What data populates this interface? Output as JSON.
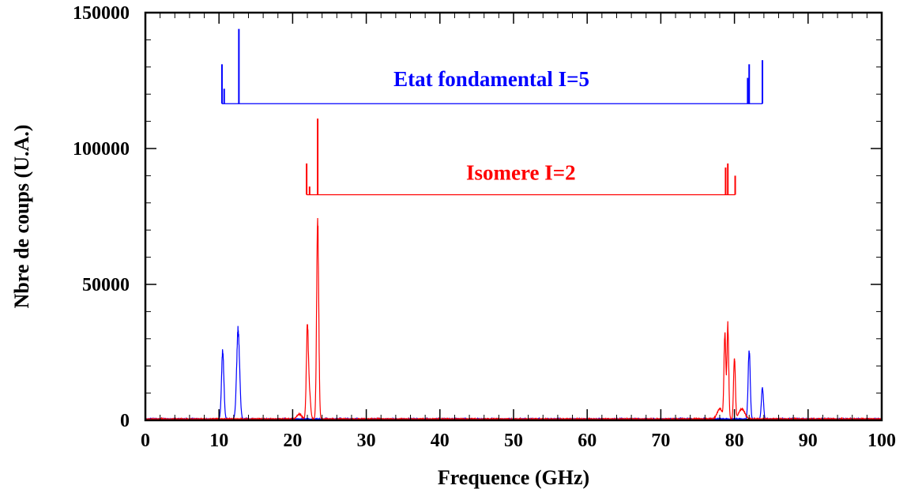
{
  "chart_data": {
    "type": "line",
    "title": "",
    "xlabel": "Frequence (GHz)",
    "ylabel": "Nbre de coups (U.A.)",
    "xlim": [
      0,
      100
    ],
    "ylim": [
      0,
      150000
    ],
    "grid": false,
    "legend": "none",
    "x_ticks": [
      {
        "value": 0,
        "label": "0"
      },
      {
        "value": 10,
        "label": "10"
      },
      {
        "value": 20,
        "label": "20"
      },
      {
        "value": 30,
        "label": "30"
      },
      {
        "value": 40,
        "label": "40"
      },
      {
        "value": 50,
        "label": "50"
      },
      {
        "value": 60,
        "label": "60"
      },
      {
        "value": 70,
        "label": "70"
      },
      {
        "value": 80,
        "label": "80"
      },
      {
        "value": 90,
        "label": "90"
      },
      {
        "value": 100,
        "label": "100"
      }
    ],
    "y_ticks": [
      {
        "value": 0,
        "label": "0"
      },
      {
        "value": 50000,
        "label": "50000"
      },
      {
        "value": 100000,
        "label": "100000"
      },
      {
        "value": 150000,
        "label": "150000"
      }
    ],
    "series": [
      {
        "color": "#0000ff",
        "peaks": [
          {
            "x": 10.5,
            "y": 26000,
            "w": 0.16
          },
          {
            "x": 12.6,
            "y": 34500,
            "w": 0.2
          },
          {
            "x": 82.0,
            "y": 27000,
            "w": 0.14
          },
          {
            "x": 83.8,
            "y": 12000,
            "w": 0.14
          }
        ]
      },
      {
        "color": "#ff0000",
        "peaks": [
          {
            "x": 22.0,
            "y": 35000,
            "w": 0.14
          },
          {
            "x": 22.3,
            "y": 9000,
            "w": 0.15
          },
          {
            "x": 23.4,
            "y": 76000,
            "w": 0.14
          },
          {
            "x": 78.7,
            "y": 33000,
            "w": 0.12
          },
          {
            "x": 79.1,
            "y": 36000,
            "w": 0.12
          },
          {
            "x": 80.0,
            "y": 24000,
            "w": 0.12
          },
          {
            "x": 20.9,
            "y": 2000,
            "w": 0.3
          },
          {
            "x": 78.0,
            "y": 4000,
            "w": 0.35
          },
          {
            "x": 81.0,
            "y": 4000,
            "w": 0.4
          }
        ]
      }
    ],
    "annotations": [
      {
        "text": "Etat fondamental I=5",
        "color": "#0000ff",
        "text_x": 47,
        "text_y": 123000,
        "bracket": {
          "baseline": 116500,
          "x_start": 10.4,
          "x_end": 83.8,
          "lines": [
            {
              "x": 10.4,
              "y": 131000
            },
            {
              "x": 10.7,
              "y": 122000
            },
            {
              "x": 12.7,
              "y": 144000
            },
            {
              "x": 81.8,
              "y": 126000
            },
            {
              "x": 82.0,
              "y": 131000
            },
            {
              "x": 83.8,
              "y": 132500
            }
          ]
        }
      },
      {
        "text": "Isomere I=2",
        "color": "#ff0000",
        "text_x": 51,
        "text_y": 88500,
        "bracket": {
          "baseline": 83000,
          "x_start": 21.9,
          "x_end": 80.1,
          "lines": [
            {
              "x": 21.9,
              "y": 94500
            },
            {
              "x": 22.3,
              "y": 86000
            },
            {
              "x": 23.4,
              "y": 111000
            },
            {
              "x": 78.8,
              "y": 93000
            },
            {
              "x": 79.1,
              "y": 94500
            },
            {
              "x": 80.1,
              "y": 90000
            }
          ]
        }
      }
    ]
  }
}
